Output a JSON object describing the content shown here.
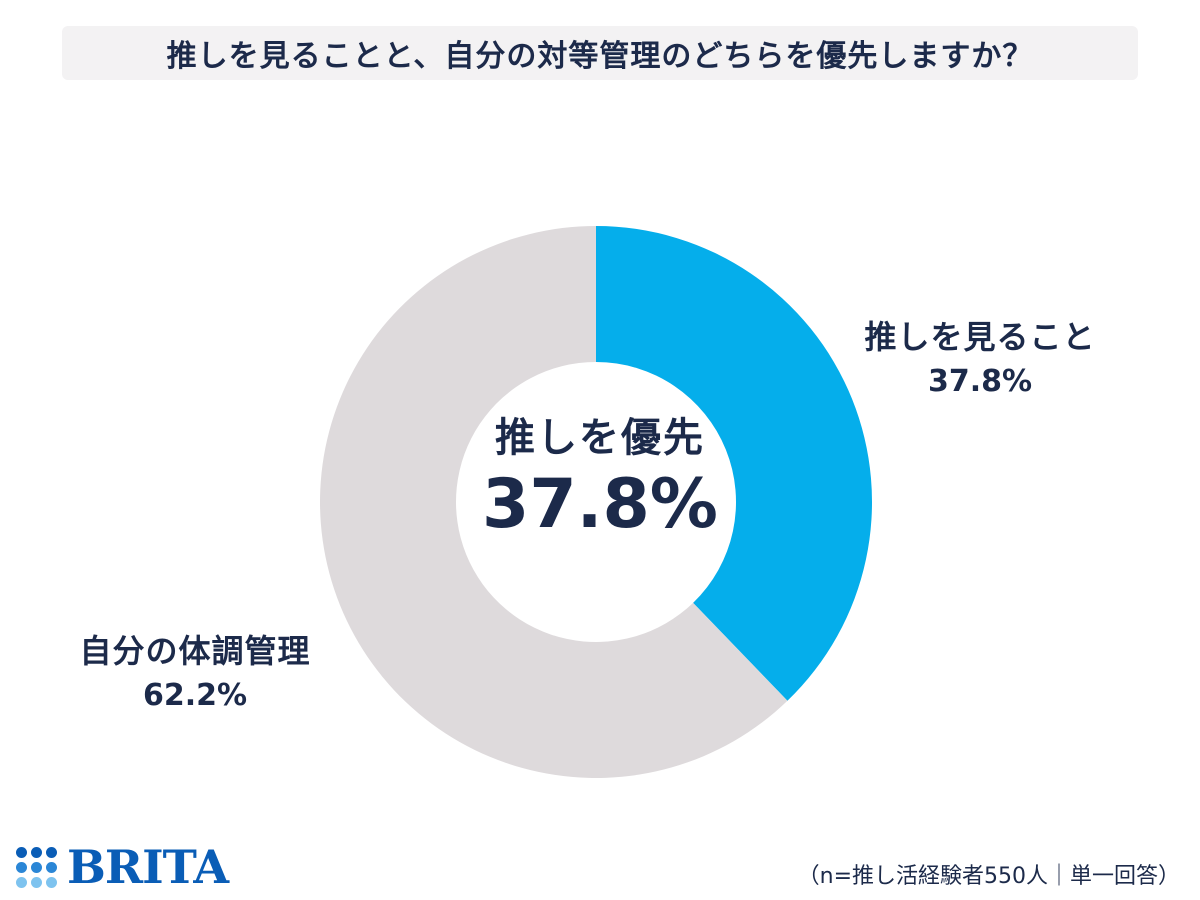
{
  "title": "推しを見ることと、自分の対等管理のどちらを優先しますか？",
  "center": {
    "category": "推しを優先",
    "value": "37.8%"
  },
  "slice_labels": {
    "a_name": "推しを見ること",
    "a_value": "37.8%",
    "b_name": "自分の体調管理",
    "b_value": "62.2%"
  },
  "colors": {
    "slice_a": "#05aeeb",
    "slice_b": "#dedadc",
    "text": "#1c2a4a",
    "brand": "#0a5db6"
  },
  "logo": {
    "text": "BRITA"
  },
  "footnote": "（n=推し活経験者550人｜単一回答）",
  "chart_data": {
    "type": "pie",
    "categories": [
      "推しを見ること",
      "自分の体調管理"
    ],
    "values": [
      37.8,
      62.2
    ],
    "title": "推しを見ることと、自分の対等管理のどちらを優先しますか？"
  }
}
